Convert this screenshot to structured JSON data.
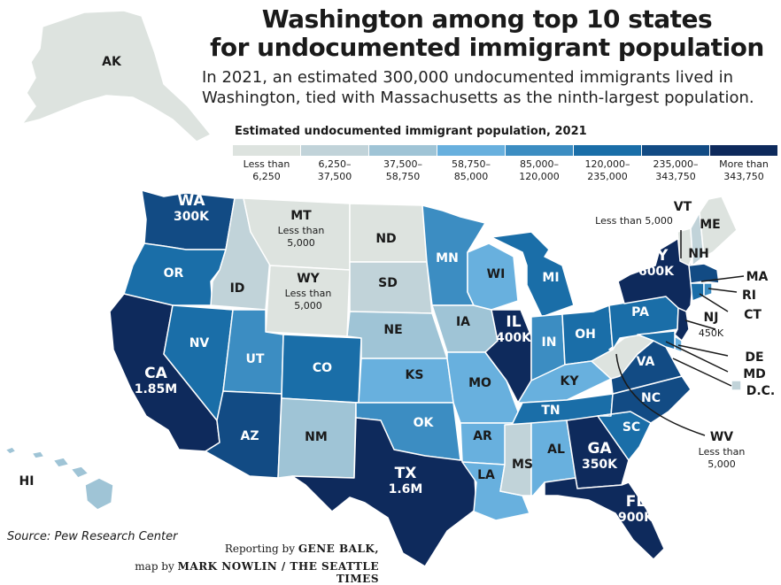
{
  "title": {
    "line1": "Washington among top 10 states",
    "line2": "for undocumented immigrant population"
  },
  "subtitle": {
    "line1": "In 2021, an estimated 300,000 undocumented immigrants lived in",
    "line2": "Washington, tied with Massachusetts as the ninth-largest population."
  },
  "legend": {
    "title": "Estimated undocumented immigrant population, 2021",
    "bins": [
      {
        "line1": "Less than",
        "line2": "6,250",
        "color": "#dde3df"
      },
      {
        "line1": "6,250–",
        "line2": "37,500",
        "color": "#c1d3d9"
      },
      {
        "line1": "37,500–",
        "line2": "58,750",
        "color": "#9fc4d6"
      },
      {
        "line1": "58,750–",
        "line2": "85,000",
        "color": "#68b0de"
      },
      {
        "line1": "85,000–",
        "line2": "120,000",
        "color": "#3c8dc2"
      },
      {
        "line1": "120,000–",
        "line2": "235,000",
        "color": "#1a6ea8"
      },
      {
        "line1": "235,000–",
        "line2": "343,750",
        "color": "#124b84"
      },
      {
        "line1": "More than",
        "line2": "343,750",
        "color": "#0e2a5c"
      }
    ]
  },
  "states": {
    "WA": {
      "name": "WA",
      "value": "300K",
      "bin": 6
    },
    "OR": {
      "name": "OR",
      "bin": 5
    },
    "CA": {
      "name": "CA",
      "value": "1.85M",
      "bin": 7
    },
    "ID": {
      "name": "ID",
      "bin": 1
    },
    "NV": {
      "name": "NV",
      "bin": 5
    },
    "MT": {
      "name": "MT",
      "note1": "Less than",
      "note2": "5,000",
      "bin": 0
    },
    "WY": {
      "name": "WY",
      "note1": "Less than",
      "note2": "5,000",
      "bin": 0
    },
    "UT": {
      "name": "UT",
      "bin": 4
    },
    "AZ": {
      "name": "AZ",
      "bin": 6
    },
    "CO": {
      "name": "CO",
      "bin": 5
    },
    "NM": {
      "name": "NM",
      "bin": 2
    },
    "ND": {
      "name": "ND",
      "bin": 0
    },
    "SD": {
      "name": "SD",
      "bin": 1
    },
    "NE": {
      "name": "NE",
      "bin": 2
    },
    "KS": {
      "name": "KS",
      "bin": 3
    },
    "OK": {
      "name": "OK",
      "bin": 4
    },
    "TX": {
      "name": "TX",
      "value": "1.6M",
      "bin": 7
    },
    "MN": {
      "name": "MN",
      "bin": 4
    },
    "IA": {
      "name": "IA",
      "bin": 2
    },
    "MO": {
      "name": "MO",
      "bin": 3
    },
    "AR": {
      "name": "AR",
      "bin": 3
    },
    "LA": {
      "name": "LA",
      "bin": 3
    },
    "WI": {
      "name": "WI",
      "bin": 3
    },
    "IL": {
      "name": "IL",
      "value": "400K",
      "bin": 7
    },
    "MI": {
      "name": "MI",
      "bin": 5
    },
    "IN": {
      "name": "IN",
      "bin": 4
    },
    "OH": {
      "name": "OH",
      "bin": 5
    },
    "KY": {
      "name": "KY",
      "bin": 3
    },
    "TN": {
      "name": "TN",
      "bin": 5
    },
    "MS": {
      "name": "MS",
      "bin": 1
    },
    "AL": {
      "name": "AL",
      "bin": 3
    },
    "GA": {
      "name": "GA",
      "value": "350K",
      "bin": 7
    },
    "FL": {
      "name": "FL",
      "value": "900K",
      "bin": 7
    },
    "SC": {
      "name": "SC",
      "bin": 5
    },
    "NC": {
      "name": "NC",
      "bin": 6
    },
    "VA": {
      "name": "VA",
      "bin": 6
    },
    "WV": {
      "name": "WV",
      "note1": "Less than",
      "note2": "5,000",
      "bin": 0
    },
    "PA": {
      "name": "PA",
      "bin": 5
    },
    "NY": {
      "name": "NY",
      "value": "600K",
      "bin": 7
    },
    "VT": {
      "name": "VT",
      "note1": "Less than 5,000",
      "bin": 0
    },
    "NH": {
      "name": "NH",
      "bin": 1
    },
    "ME": {
      "name": "ME",
      "bin": 0
    },
    "MA": {
      "name": "MA",
      "bin": 6
    },
    "RI": {
      "name": "RI",
      "bin": 4
    },
    "CT": {
      "name": "CT",
      "bin": 5
    },
    "NJ": {
      "name": "NJ",
      "value": "450K",
      "bin": 7
    },
    "DE": {
      "name": "DE",
      "bin": 3
    },
    "MD": {
      "name": "MD",
      "bin": 5
    },
    "DC": {
      "name": "D.C.",
      "bin": 1
    },
    "AK": {
      "name": "AK",
      "bin": 0
    },
    "HI": {
      "name": "HI",
      "bin": 2
    }
  },
  "footer": {
    "source": "Source: Pew Research Center",
    "credit1_prefix": "Reporting by ",
    "credit1_name": "GENE BALK,",
    "credit2_prefix": "map by ",
    "credit2_name": "MARK NOWLIN / THE SEATTLE TIMES"
  }
}
